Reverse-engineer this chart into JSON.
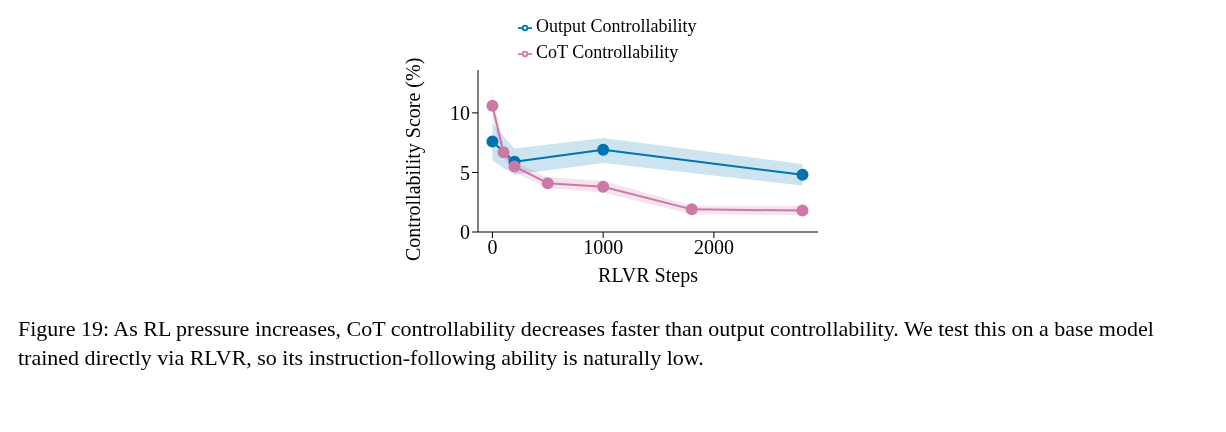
{
  "chart_data": {
    "type": "line",
    "xlabel": "RLVR Steps",
    "ylabel": "Controllability Score (%)",
    "xlim": [
      -130,
      2940
    ],
    "xticks": [
      0,
      1000,
      2000
    ],
    "ylim": [
      0,
      13.6
    ],
    "yticks": [
      0,
      5,
      10
    ],
    "series": [
      {
        "name": "Output Controllability",
        "color": "#0072b2",
        "x": [
          0,
          200,
          1000,
          2800
        ],
        "values": [
          7.6,
          5.9,
          6.9,
          4.8
        ],
        "lower": [
          6.0,
          4.8,
          5.8,
          3.9
        ],
        "upper": [
          9.1,
          7.0,
          7.9,
          5.7
        ]
      },
      {
        "name": "CoT Controllability",
        "color": "#cc79a7",
        "x": [
          0,
          100,
          200,
          500,
          1000,
          1800,
          2800
        ],
        "values": [
          10.6,
          6.7,
          5.5,
          4.1,
          3.8,
          1.9,
          1.8
        ],
        "lower": [
          9.5,
          6.2,
          5.0,
          3.7,
          3.3,
          1.5,
          1.4
        ],
        "upper": [
          11.8,
          7.1,
          5.9,
          4.6,
          4.3,
          2.2,
          2.2
        ]
      }
    ],
    "grid": false,
    "legend": "top",
    "marker": "circle",
    "line_style": "solid",
    "annotations": [
      "Figure 19: As RL pressure increases, CoT controllability decreases faster than output controllability. We test this on a base model trained directly via RLVR, so its instruction-following ability is naturally low."
    ]
  }
}
